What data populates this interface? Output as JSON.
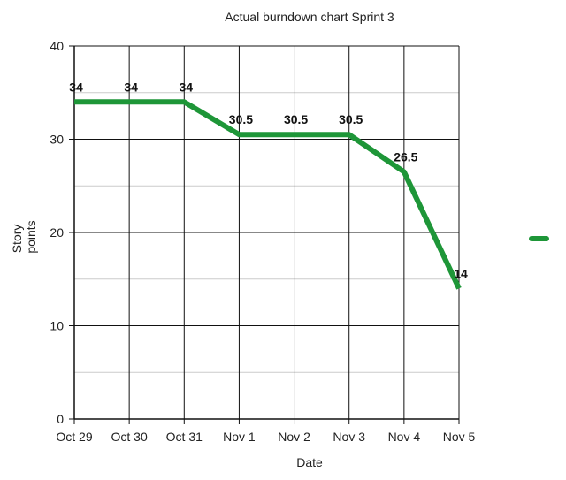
{
  "chart_data": {
    "type": "line",
    "title": "Actual burndown chart Sprint 3",
    "xlabel": "Date",
    "ylabel": "Story points",
    "ylabel_lines": [
      "Story",
      "points"
    ],
    "categories": [
      "Oct 29",
      "Oct 30",
      "Oct 31",
      "Nov 1",
      "Nov 2",
      "Nov 3",
      "Nov 4",
      "Nov 5"
    ],
    "series": [
      {
        "name": "",
        "values": [
          34,
          34,
          34,
          30.5,
          30.5,
          30.5,
          26.5,
          14
        ],
        "labels": [
          "34",
          "34",
          "34",
          "30.5",
          "30.5",
          "30.5",
          "26.5",
          "14"
        ],
        "color": "#1e9638"
      }
    ],
    "ylim": [
      0,
      40
    ],
    "yticks": [
      0,
      10,
      20,
      30,
      40
    ],
    "grid": true,
    "minor_grid": true,
    "legend": "right"
  }
}
